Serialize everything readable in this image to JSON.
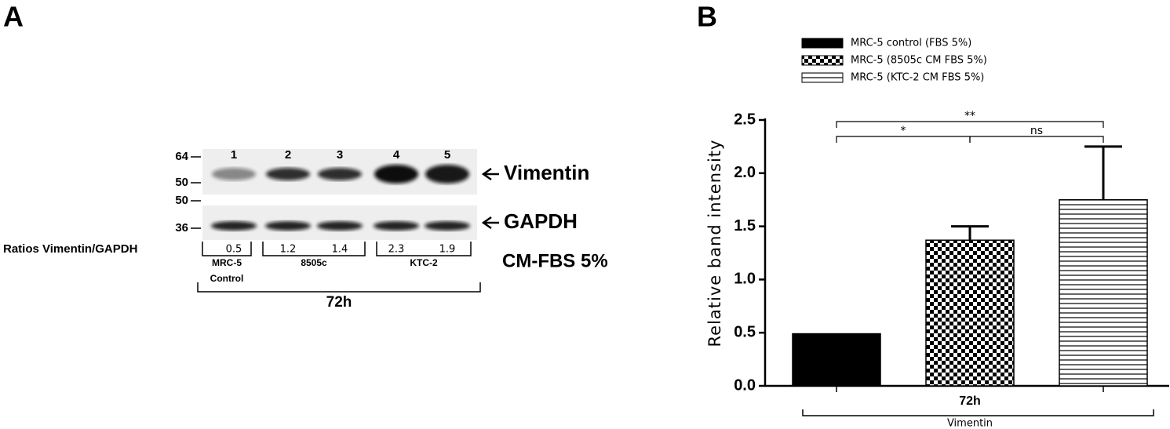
{
  "blot": {
    "panel_label": "A",
    "lanes": [
      1,
      2,
      3,
      4,
      5
    ],
    "markers": [
      64,
      50,
      50,
      36
    ],
    "proteins": [
      "Vimentin",
      "GAPDH"
    ],
    "ratio_label": "Ratios Vimentin/GAPDH",
    "ratios": [
      0.5,
      1.2,
      1.4,
      2.3,
      1.9
    ],
    "groups": [
      "MRC-5",
      "8505c",
      "KTC-2"
    ],
    "control_label": "Control",
    "condition": "CM-FBS 5%",
    "time": "72h"
  },
  "chart_data": {
    "type": "bar",
    "panel_label": "B",
    "ylabel": "Relative band intensity",
    "categories": [
      "72h"
    ],
    "group_label": "Vimentin",
    "series": [
      {
        "name": "MRC-5 control (FBS 5%)",
        "color": "#000000",
        "pattern": "solid",
        "values": [
          0.49
        ]
      },
      {
        "name": "MRC-5 (8505c CM FBS 5%)",
        "color": "#000000",
        "pattern": "checker",
        "values": [
          1.37
        ],
        "errors": [
          0.13
        ]
      },
      {
        "name": "MRC-5 (KTC-2 CM FBS 5%)",
        "color": "#000000",
        "pattern": "hstripe",
        "values": [
          1.75
        ],
        "errors": [
          0.5
        ]
      }
    ],
    "ylim": [
      0,
      2.5
    ],
    "yticks": [
      {
        "value": 0,
        "label": "0.0"
      },
      0.5,
      {
        "value": 1,
        "label": "1.0"
      },
      1.5,
      {
        "value": 2,
        "label": "2.0"
      },
      2.5
    ],
    "annotations": [
      "**",
      "*",
      "ns"
    ]
  }
}
